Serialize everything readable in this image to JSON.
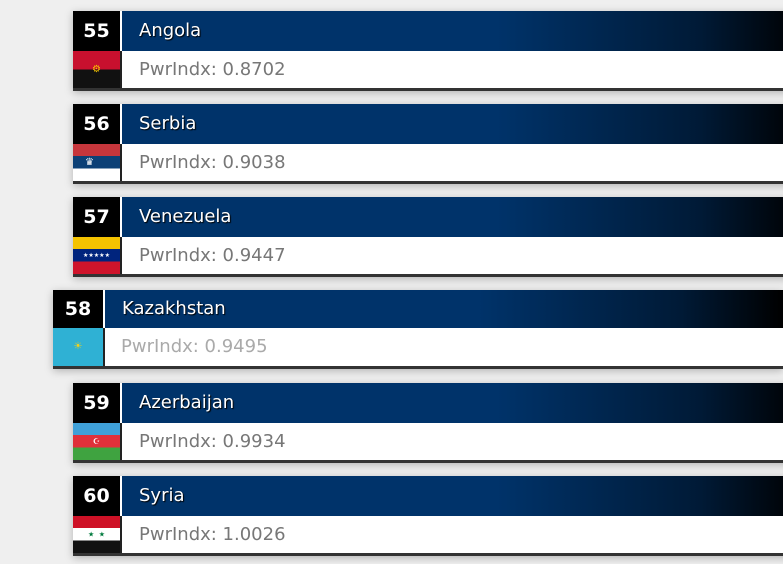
{
  "rankings": [
    {
      "rank": "55",
      "country": "Angola",
      "power_index": "PwrIndx: 0.8702",
      "flag": "angola-flag"
    },
    {
      "rank": "56",
      "country": "Serbia",
      "power_index": "PwrIndx: 0.9038",
      "flag": "serbia-flag"
    },
    {
      "rank": "57",
      "country": "Venezuela",
      "power_index": "PwrIndx: 0.9447",
      "flag": "venezuela-flag"
    },
    {
      "rank": "58",
      "country": "Kazakhstan",
      "power_index": "PwrIndx: 0.9495",
      "flag": "kazakhstan-flag",
      "highlighted": true
    },
    {
      "rank": "59",
      "country": "Azerbaijan",
      "power_index": "PwrIndx: 0.9934",
      "flag": "azerbaijan-flag"
    },
    {
      "rank": "60",
      "country": "Syria",
      "power_index": "PwrIndx: 1.0026",
      "flag": "syria-flag"
    }
  ],
  "colors": {
    "title_bar": "#00336a",
    "rank_box": "#000000",
    "index_text": "#777777"
  }
}
